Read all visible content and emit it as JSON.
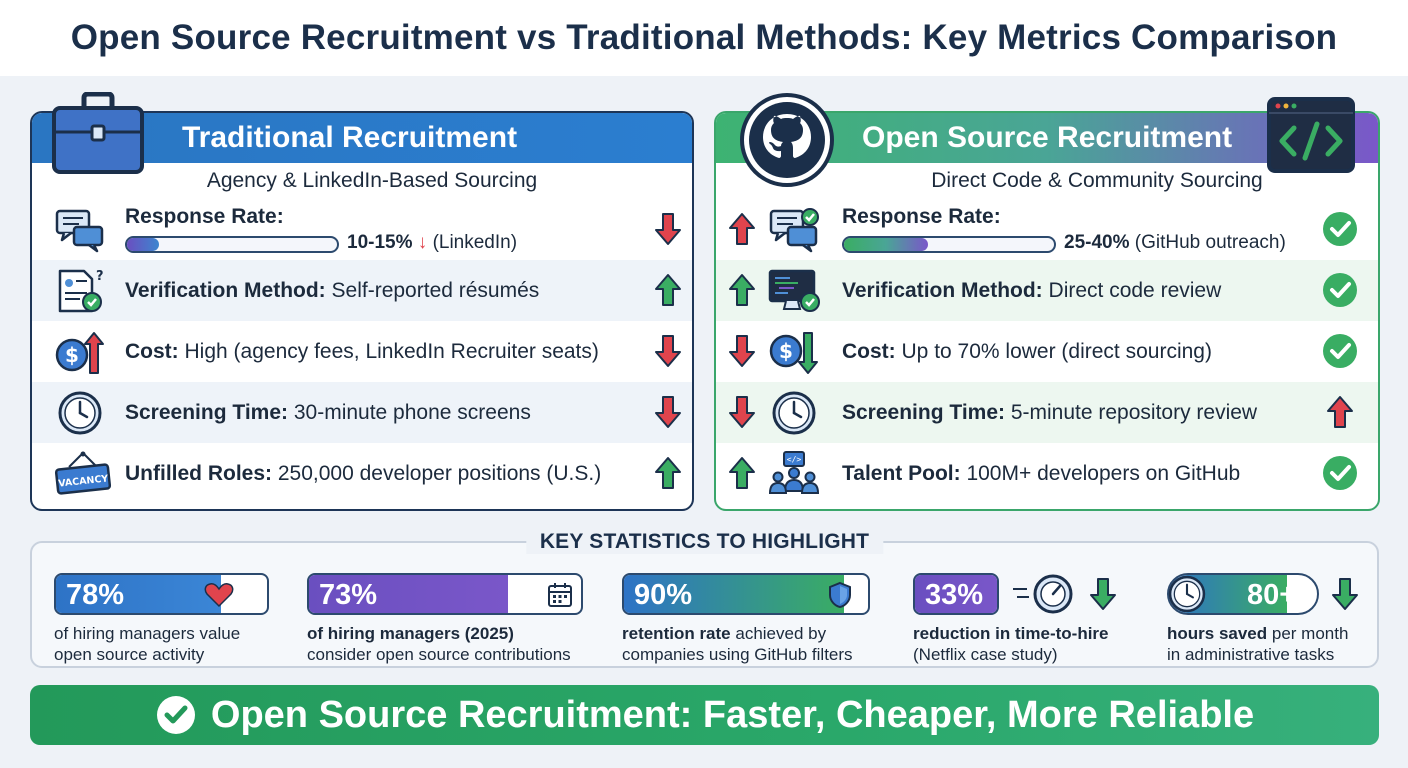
{
  "title": "Open Source Recruitment vs Traditional Methods: Key Metrics Comparison",
  "traditional": {
    "heading": "Traditional Recruitment",
    "subheading": "Agency & LinkedIn-Based Sourcing",
    "response_rate": {
      "label": "Response Rate:",
      "value": "10-15%",
      "note": "(LinkedIn)",
      "fill_percent": 15
    },
    "rows": [
      {
        "label": "Verification Method:",
        "value": "Self-reported résumés",
        "trend": "up"
      },
      {
        "label": "Cost:",
        "value": "High (agency fees, LinkedIn Recruiter seats)",
        "trend": "down"
      },
      {
        "label": "Screening Time:",
        "value": "30-minute phone screens",
        "trend": "down"
      },
      {
        "label": "Unfilled Roles:",
        "value": "250,000 developer positions (U.S.)",
        "trend": "up"
      }
    ],
    "vacancy_sign": "VACANCY"
  },
  "open_source": {
    "heading": "Open Source Recruitment",
    "subheading": "Direct Code & Community Sourcing",
    "response_rate": {
      "label": "Response Rate:",
      "value": "25-40%",
      "note": "(GitHub outreach)",
      "fill_percent": 40
    },
    "rows": [
      {
        "label": "Verification Method:",
        "value": "Direct code review",
        "trend": "up"
      },
      {
        "label": "Cost:",
        "value": "Up to 70% lower (direct sourcing)",
        "trend": "down"
      },
      {
        "label": "Screening Time:",
        "value": "5-minute repository review",
        "trend": "down"
      },
      {
        "label": "Talent Pool:",
        "value": "100M+ developers on GitHub",
        "trend": "up"
      }
    ]
  },
  "stats": {
    "title": "KEY STATISTICS TO HIGHLIGHT",
    "items": [
      {
        "number": "78%",
        "fill_percent": 78,
        "desc_bold": "",
        "desc": "of hiring managers value",
        "desc2": "open source activity",
        "icon": "heart-icon"
      },
      {
        "number": "73%",
        "fill_percent": 73,
        "desc_bold": "of hiring managers (2025)",
        "desc": "",
        "desc2": "consider open source contributions",
        "icon": "calendar-icon"
      },
      {
        "number": "90%",
        "fill_percent": 90,
        "desc_bold": "retention rate",
        "desc": " achieved by",
        "desc2": "companies using GitHub filters",
        "icon": "shield-icon"
      },
      {
        "number": "33%",
        "fill_percent": 33,
        "desc_bold": "reduction in time-to-hire",
        "desc": "",
        "desc2": "(Netflix case study)",
        "icon": "speedometer-icon"
      },
      {
        "number": "80+",
        "fill_percent": 80,
        "desc_bold": "hours saved",
        "desc": " per month",
        "desc2": "in administrative tasks",
        "icon": "clock-icon"
      }
    ]
  },
  "banner": "Open Source Recruitment: Faster, Cheaper, More Reliable",
  "colors": {
    "navy": "#1b2f4a",
    "blue": "#2a76c2",
    "green": "#2fa865",
    "purple": "#7a57c9",
    "red": "#d9414a"
  }
}
